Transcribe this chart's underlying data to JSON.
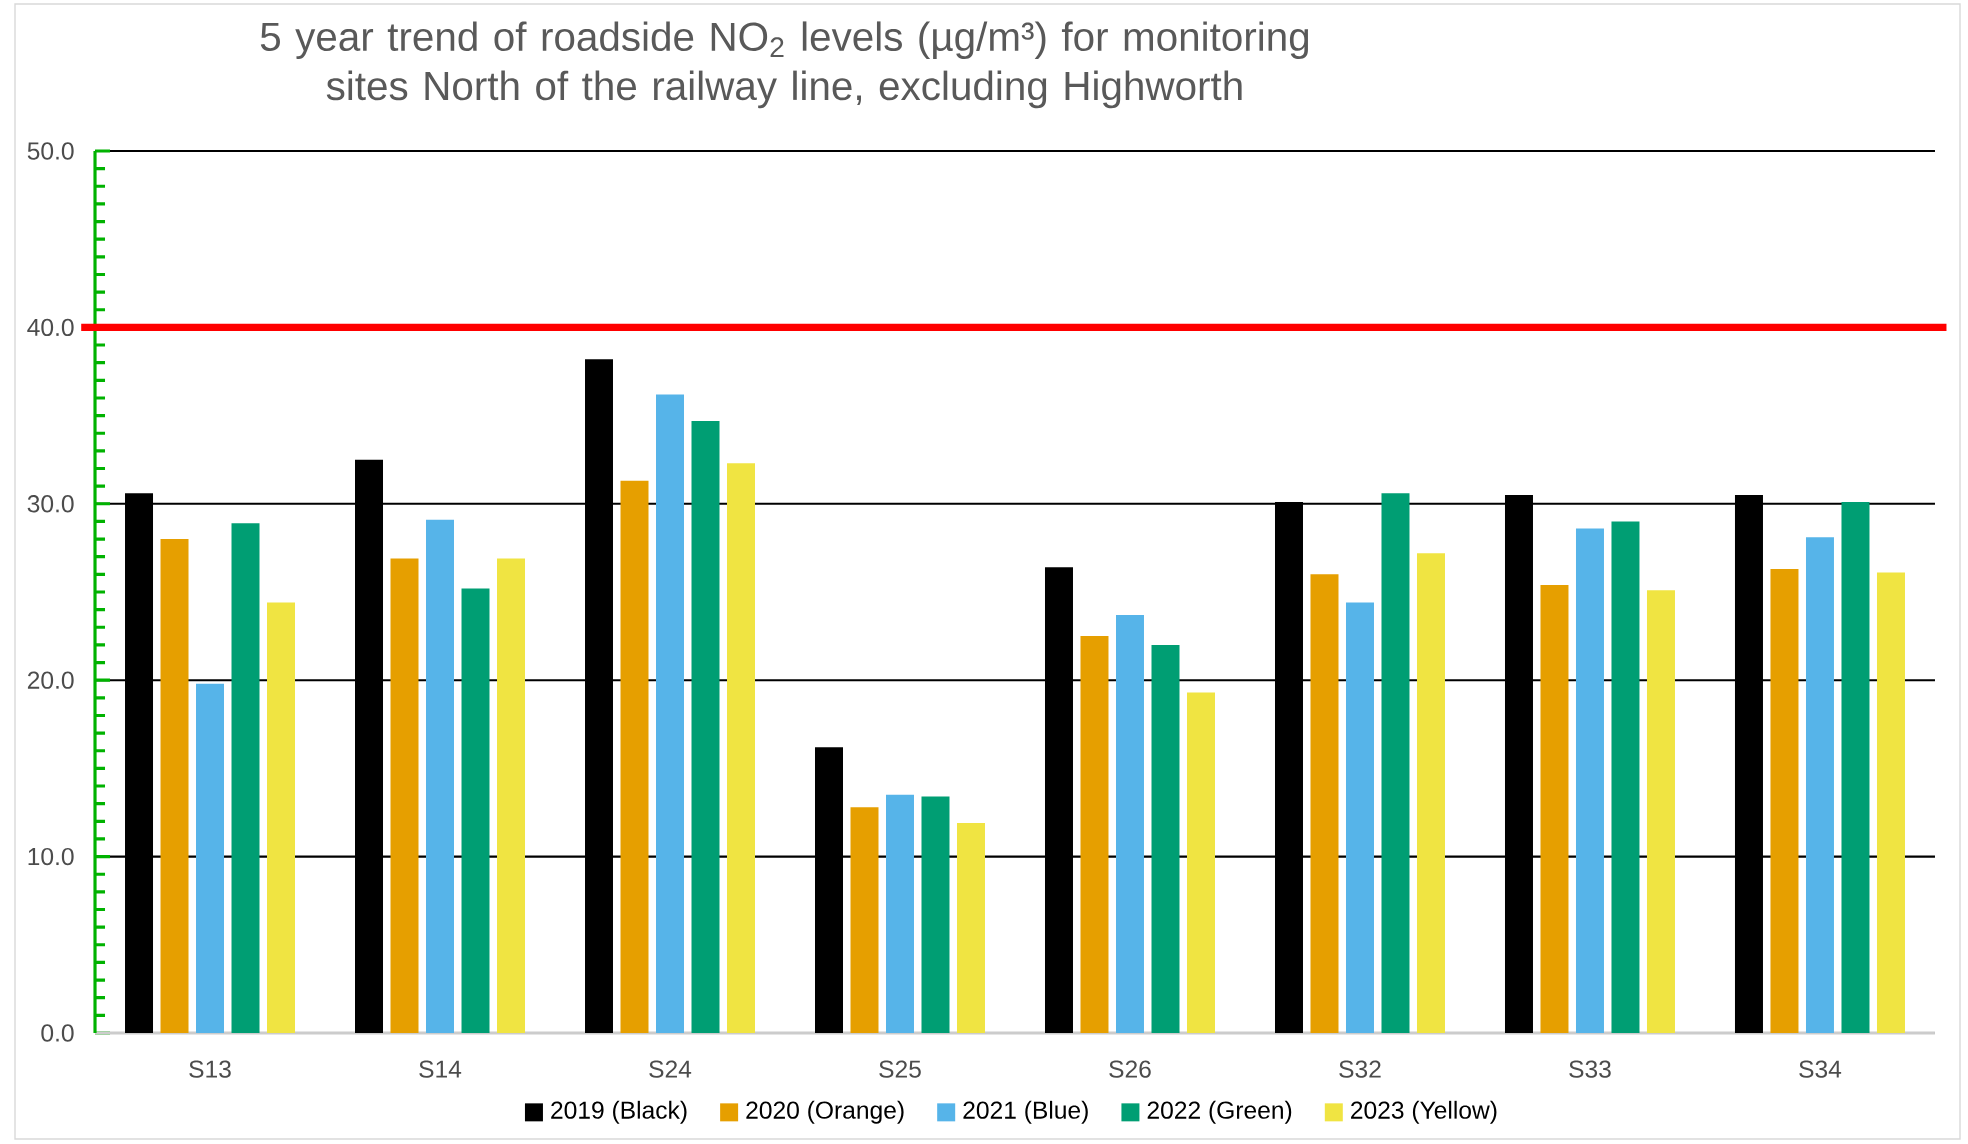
{
  "chart_data": {
    "type": "bar",
    "title": "5 year trend of roadside NO$_{2}$ levels (µg/m³) for monitoring sites North of the railway line, excluding Highworth",
    "categories": [
      "S13",
      "S14",
      "S24",
      "S25",
      "S26",
      "S32",
      "S33",
      "S34"
    ],
    "series": [
      {
        "name": "2019 (Black)",
        "color": "#000000",
        "values": [
          30.6,
          32.5,
          38.2,
          16.2,
          26.4,
          30.1,
          30.5,
          30.5
        ]
      },
      {
        "name": "2020 (Orange)",
        "color": "#e69f00",
        "values": [
          28.0,
          26.9,
          31.3,
          12.8,
          22.5,
          26.0,
          25.4,
          26.3
        ]
      },
      {
        "name": "2021 (Blue)",
        "color": "#56b4e9",
        "values": [
          19.8,
          29.1,
          36.2,
          13.5,
          23.7,
          24.4,
          28.6,
          28.1
        ]
      },
      {
        "name": "2022 (Green)",
        "color": "#009e73",
        "values": [
          28.9,
          25.2,
          34.7,
          13.4,
          22.0,
          30.6,
          29.0,
          30.1
        ]
      },
      {
        "name": "2023 (Yellow)",
        "color": "#f0e442",
        "values": [
          24.4,
          26.9,
          32.3,
          11.9,
          19.3,
          27.2,
          25.1,
          26.1
        ]
      }
    ],
    "ylim": [
      0,
      50
    ],
    "yticks": [
      {
        "value": 0,
        "label": "0.0"
      },
      {
        "value": 10,
        "label": "10.0"
      },
      {
        "value": 20,
        "label": "20.0"
      },
      {
        "value": 30,
        "label": "30.0"
      },
      {
        "value": 40,
        "label": "40.0"
      },
      {
        "value": 50,
        "label": "50.0"
      }
    ],
    "ref_lines": [
      {
        "axis": "y",
        "value": 40,
        "color": "#ff0000"
      }
    ],
    "grid": "y",
    "legend": "bottom"
  }
}
